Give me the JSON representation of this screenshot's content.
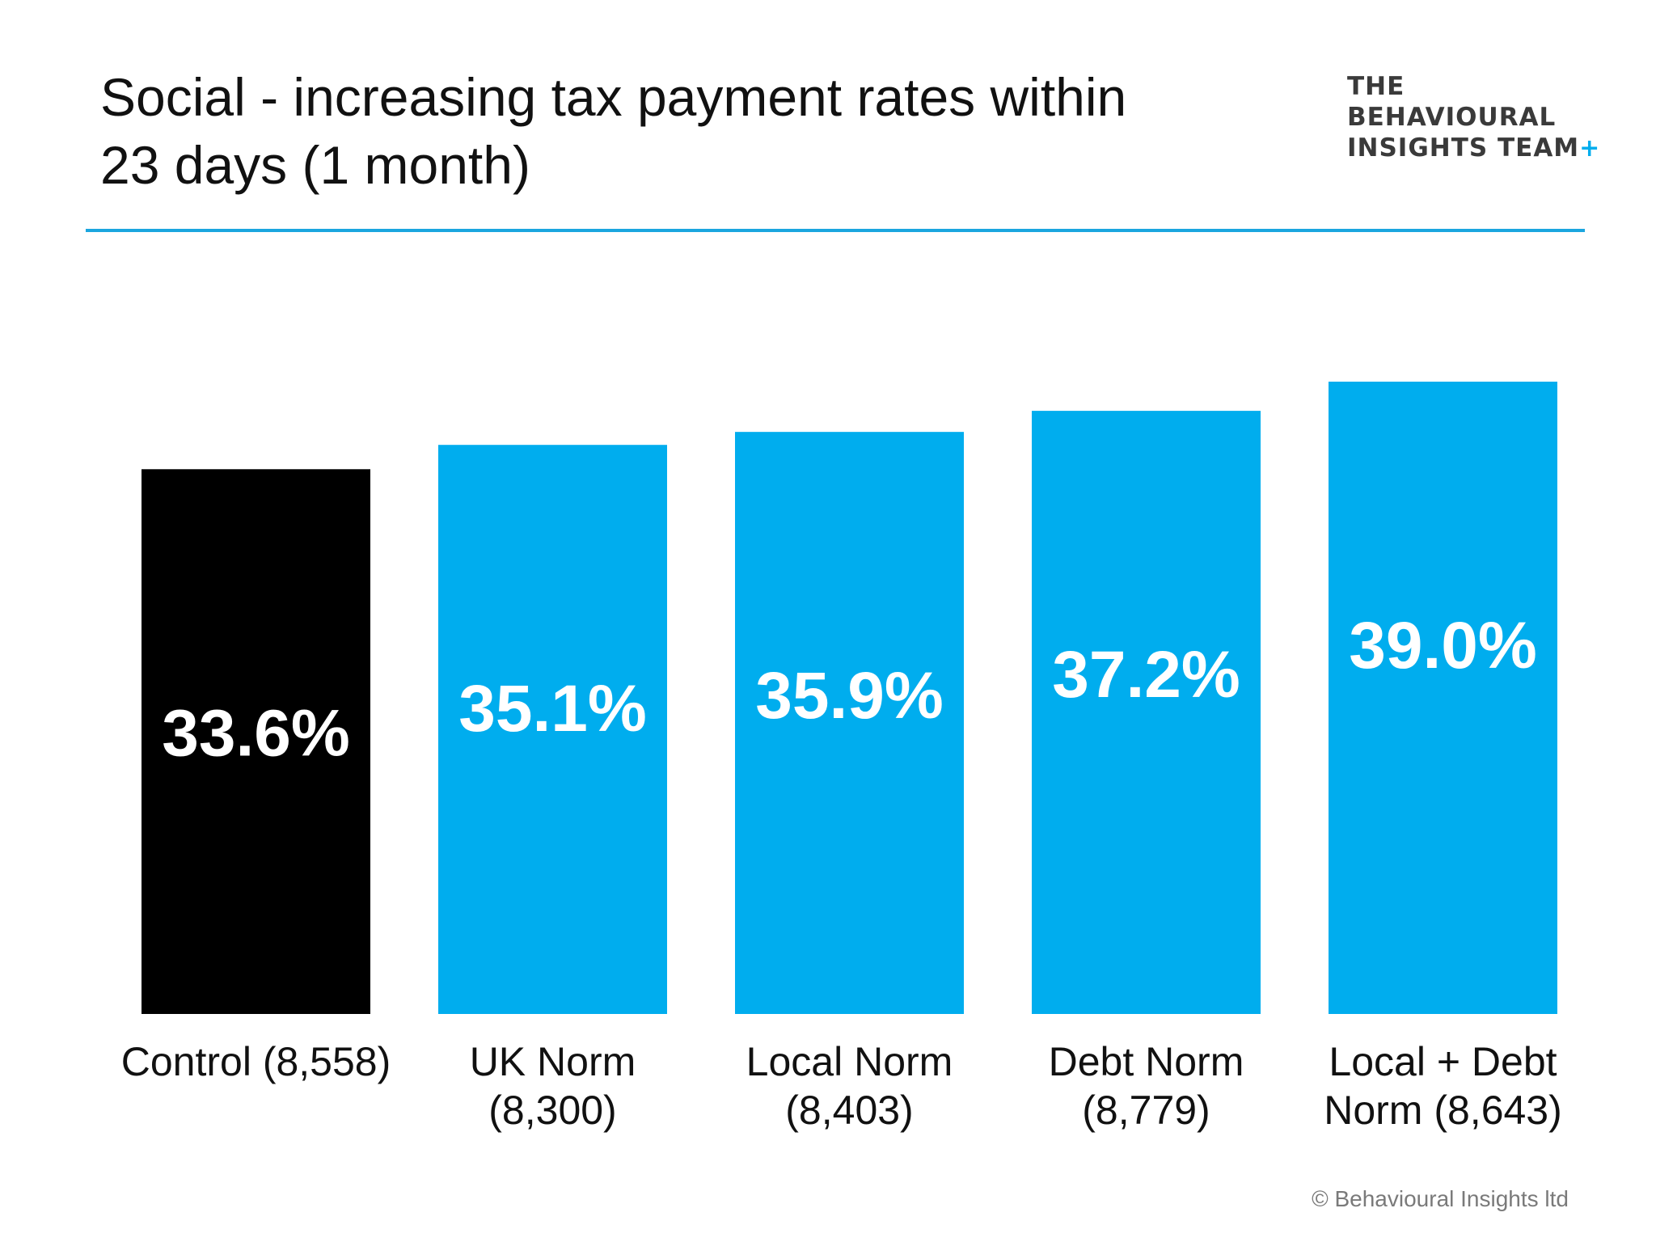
{
  "slide": {
    "title_line1": "Social - increasing tax payment rates within",
    "title_line2": "23 days (1 month)",
    "logo_line1": "THE",
    "logo_line2": "BEHAVIOURAL",
    "logo_line3": "INSIGHTS TEAM",
    "copyright": "© Behavioural Insights ltd"
  },
  "colors": {
    "control_bar": "#000000",
    "treatment_bar": "#00adee",
    "rule": "#1ba6df",
    "value_label": "#ffffff"
  },
  "chart_data": {
    "type": "bar",
    "title": "",
    "xlabel": "",
    "ylabel": "",
    "ylim": [
      0,
      40
    ],
    "grid": false,
    "categories": [
      [
        "Control (8,558)"
      ],
      [
        "UK Norm",
        "(8,300)"
      ],
      [
        "Local Norm",
        "(8,403)"
      ],
      [
        "Debt Norm",
        "(8,779)"
      ],
      [
        "Local + Debt",
        "Norm (8,643)"
      ]
    ],
    "values": [
      33.6,
      35.1,
      35.9,
      37.2,
      39.0
    ],
    "value_labels": [
      "33.6%",
      "35.1%",
      "35.9%",
      "37.2%",
      "39.0%"
    ],
    "bar_colors": [
      "#000000",
      "#00adee",
      "#00adee",
      "#00adee",
      "#00adee"
    ]
  }
}
